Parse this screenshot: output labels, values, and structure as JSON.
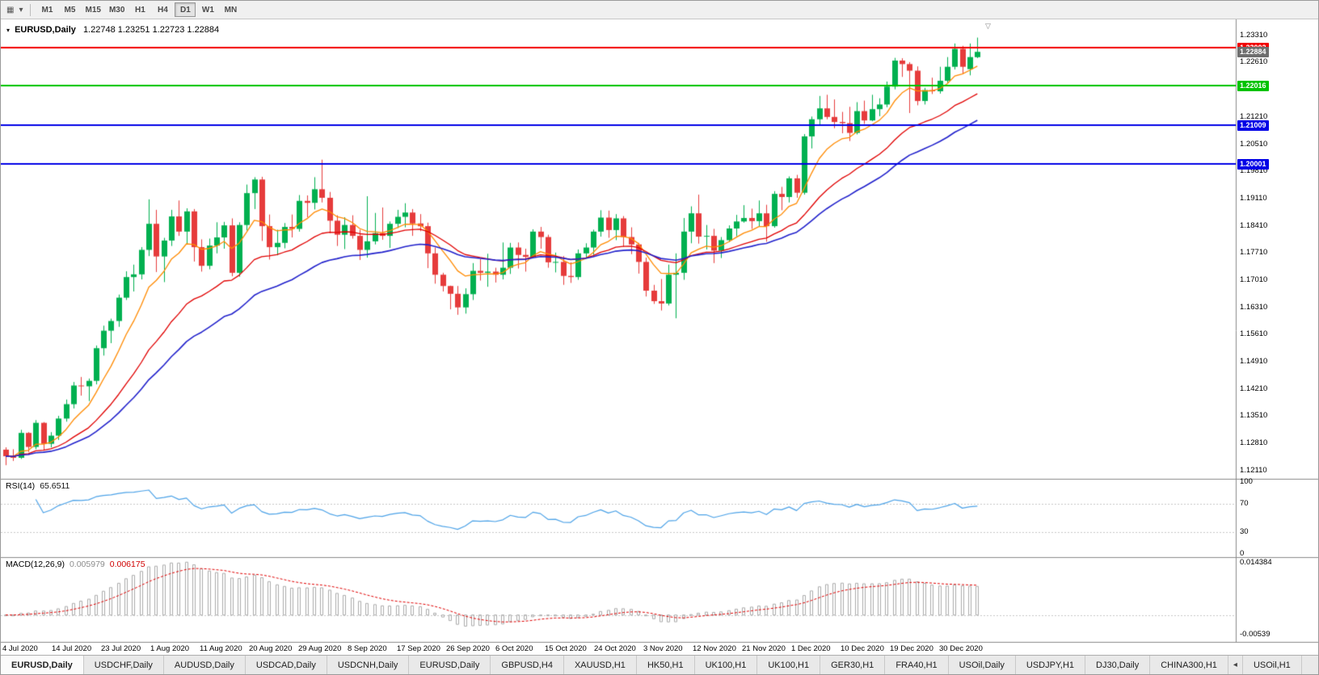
{
  "toolbar": {
    "icons": [
      {
        "name": "chart-window-icon",
        "glyph": "▦"
      },
      {
        "name": "dropdown-caret-icon",
        "glyph": "▾"
      }
    ],
    "timeframes": [
      {
        "label": "M1",
        "active": false
      },
      {
        "label": "M5",
        "active": false
      },
      {
        "label": "M15",
        "active": false
      },
      {
        "label": "M30",
        "active": false
      },
      {
        "label": "H1",
        "active": false
      },
      {
        "label": "H4",
        "active": false
      },
      {
        "label": "D1",
        "active": true
      },
      {
        "label": "W1",
        "active": false
      },
      {
        "label": "MN",
        "active": false
      }
    ]
  },
  "chart": {
    "title_symbol": "EURUSD,Daily",
    "title_ohlc": "1.22748 1.23251 1.22723 1.22884",
    "shift_marker": "▽",
    "price_axis_labels": [
      "1.23310",
      "1.22610",
      "1.21910",
      "1.21210",
      "1.20510",
      "1.19810",
      "1.19110",
      "1.18410",
      "1.17710",
      "1.17010",
      "1.16310",
      "1.15610",
      "1.14910",
      "1.14210",
      "1.13510",
      "1.12810",
      "1.12110"
    ],
    "hlines": [
      {
        "value": 1.23002,
        "label": "1.23002",
        "color": "#F20000"
      },
      {
        "value": 1.22016,
        "label": "1.22016",
        "color": "#00C300"
      },
      {
        "value": 1.21009,
        "label": "1.21009",
        "color": "#0000E6"
      },
      {
        "value": 1.20001,
        "label": "1.20001",
        "color": "#0000E6"
      }
    ],
    "current_price": {
      "value": 1.22884,
      "label": "1.22884",
      "color": "#6e6e6e"
    }
  },
  "chart_data": {
    "type": "candlestick",
    "title": "EURUSD,Daily",
    "price_range": {
      "min": 1.119,
      "max": 1.2372
    },
    "up_color": "#00B050",
    "down_color": "#E63B3B",
    "x_labels": [
      "4 Jul 2020",
      "14 Jul 2020",
      "23 Jul 2020",
      "1 Aug 2020",
      "11 Aug 2020",
      "20 Aug 2020",
      "29 Aug 2020",
      "8 Sep 2020",
      "17 Sep 2020",
      "26 Sep 2020",
      "6 Oct 2020",
      "15 Oct 2020",
      "24 Oct 2020",
      "3 Nov 2020",
      "12 Nov 2020",
      "21 Nov 2020",
      "1 Dec 2020",
      "10 Dec 2020",
      "19 Dec 2020",
      "30 Dec 2020"
    ],
    "candles": [
      [
        1.1265,
        1.1271,
        1.1225,
        1.1248
      ],
      [
        1.1248,
        1.1266,
        1.1236,
        1.1244
      ],
      [
        1.1244,
        1.1316,
        1.1241,
        1.1308
      ],
      [
        1.1308,
        1.131,
        1.1259,
        1.1272
      ],
      [
        1.1272,
        1.1341,
        1.1266,
        1.1334
      ],
      [
        1.1334,
        1.1336,
        1.1263,
        1.128
      ],
      [
        1.128,
        1.131,
        1.1271,
        1.1301
      ],
      [
        1.1301,
        1.1352,
        1.129,
        1.1345
      ],
      [
        1.1345,
        1.1394,
        1.1337,
        1.1382
      ],
      [
        1.1382,
        1.1439,
        1.1371,
        1.143
      ],
      [
        1.143,
        1.1452,
        1.1404,
        1.1428
      ],
      [
        1.1428,
        1.1448,
        1.139,
        1.1442
      ],
      [
        1.1442,
        1.1533,
        1.1433,
        1.1526
      ],
      [
        1.1526,
        1.1584,
        1.1507,
        1.1571
      ],
      [
        1.1571,
        1.1602,
        1.1539,
        1.1596
      ],
      [
        1.1596,
        1.1664,
        1.1581,
        1.1656
      ],
      [
        1.1656,
        1.1724,
        1.165,
        1.1709
      ],
      [
        1.1709,
        1.1741,
        1.1672,
        1.1716
      ],
      [
        1.1716,
        1.1786,
        1.1703,
        1.1779
      ],
      [
        1.1779,
        1.1909,
        1.1763,
        1.1846
      ],
      [
        1.1846,
        1.1882,
        1.1722,
        1.1762
      ],
      [
        1.1762,
        1.181,
        1.1696,
        1.1803
      ],
      [
        1.1803,
        1.1882,
        1.1789,
        1.1865
      ],
      [
        1.1865,
        1.1906,
        1.1815,
        1.1826
      ],
      [
        1.1826,
        1.1886,
        1.1793,
        1.1878
      ],
      [
        1.1878,
        1.1884,
        1.1749,
        1.1786
      ],
      [
        1.1786,
        1.1806,
        1.1723,
        1.1738
      ],
      [
        1.1738,
        1.1808,
        1.1729,
        1.179
      ],
      [
        1.179,
        1.185,
        1.177,
        1.1811
      ],
      [
        1.1811,
        1.1851,
        1.1782,
        1.1842
      ],
      [
        1.1842,
        1.186,
        1.1711,
        1.172
      ],
      [
        1.172,
        1.185,
        1.171,
        1.1843
      ],
      [
        1.1843,
        1.1947,
        1.1829,
        1.1925
      ],
      [
        1.1925,
        1.1966,
        1.1884,
        1.196
      ],
      [
        1.196,
        1.1967,
        1.1802,
        1.184
      ],
      [
        1.184,
        1.187,
        1.1754,
        1.1786
      ],
      [
        1.1786,
        1.1831,
        1.1765,
        1.1797
      ],
      [
        1.1797,
        1.1848,
        1.1783,
        1.1838
      ],
      [
        1.1838,
        1.187,
        1.1811,
        1.1833
      ],
      [
        1.1833,
        1.192,
        1.1826,
        1.1905
      ],
      [
        1.1905,
        1.1919,
        1.1863,
        1.19
      ],
      [
        1.19,
        1.1966,
        1.1883,
        1.1935
      ],
      [
        1.1935,
        1.2011,
        1.1901,
        1.1913
      ],
      [
        1.1913,
        1.1928,
        1.1822,
        1.1854
      ],
      [
        1.1854,
        1.1868,
        1.1789,
        1.1818
      ],
      [
        1.1818,
        1.1863,
        1.1781,
        1.1843
      ],
      [
        1.1843,
        1.1868,
        1.1808,
        1.1815
      ],
      [
        1.1815,
        1.1831,
        1.1753,
        1.1779
      ],
      [
        1.1779,
        1.1917,
        1.1759,
        1.1801
      ],
      [
        1.1801,
        1.1874,
        1.1793,
        1.1822
      ],
      [
        1.1822,
        1.1888,
        1.1805,
        1.1815
      ],
      [
        1.1815,
        1.1852,
        1.1784,
        1.1846
      ],
      [
        1.1846,
        1.1882,
        1.1835,
        1.1864
      ],
      [
        1.1864,
        1.1899,
        1.1837,
        1.1875
      ],
      [
        1.1875,
        1.1884,
        1.1815,
        1.1847
      ],
      [
        1.1847,
        1.1871,
        1.1827,
        1.184
      ],
      [
        1.184,
        1.1849,
        1.1732,
        1.177
      ],
      [
        1.177,
        1.1785,
        1.1692,
        1.1715
      ],
      [
        1.1715,
        1.172,
        1.1672,
        1.1686
      ],
      [
        1.1686,
        1.1687,
        1.1626,
        1.1666
      ],
      [
        1.1666,
        1.1686,
        1.1612,
        1.1631
      ],
      [
        1.1631,
        1.168,
        1.1615,
        1.1665
      ],
      [
        1.1665,
        1.1745,
        1.165,
        1.1725
      ],
      [
        1.1725,
        1.1755,
        1.17,
        1.172
      ],
      [
        1.172,
        1.1769,
        1.1684,
        1.1723
      ],
      [
        1.1723,
        1.1733,
        1.1695,
        1.1715
      ],
      [
        1.1715,
        1.1798,
        1.1703,
        1.1733
      ],
      [
        1.1733,
        1.1797,
        1.1717,
        1.1785
      ],
      [
        1.1785,
        1.1798,
        1.1731,
        1.1766
      ],
      [
        1.1766,
        1.1782,
        1.1723,
        1.1761
      ],
      [
        1.1761,
        1.1832,
        1.1757,
        1.1826
      ],
      [
        1.1826,
        1.1838,
        1.1782,
        1.1812
      ],
      [
        1.1812,
        1.1818,
        1.1733,
        1.1747
      ],
      [
        1.1747,
        1.1772,
        1.1721,
        1.1748
      ],
      [
        1.1748,
        1.1763,
        1.1689,
        1.1712
      ],
      [
        1.1712,
        1.1747,
        1.1694,
        1.1709
      ],
      [
        1.1709,
        1.178,
        1.1702,
        1.177
      ],
      [
        1.177,
        1.1796,
        1.1757,
        1.1785
      ],
      [
        1.1785,
        1.1831,
        1.1766,
        1.1826
      ],
      [
        1.1826,
        1.1881,
        1.1813,
        1.1862
      ],
      [
        1.1862,
        1.188,
        1.181,
        1.183
      ],
      [
        1.183,
        1.1871,
        1.1804,
        1.186
      ],
      [
        1.186,
        1.1866,
        1.1787,
        1.1812
      ],
      [
        1.1812,
        1.1837,
        1.1768,
        1.1793
      ],
      [
        1.1793,
        1.1797,
        1.1718,
        1.1748
      ],
      [
        1.1748,
        1.1759,
        1.1659,
        1.1674
      ],
      [
        1.1674,
        1.1689,
        1.164,
        1.1647
      ],
      [
        1.1647,
        1.1704,
        1.1623,
        1.1641
      ],
      [
        1.1641,
        1.1741,
        1.1636,
        1.1715
      ],
      [
        1.1715,
        1.177,
        1.1603,
        1.172
      ],
      [
        1.172,
        1.1861,
        1.1702,
        1.1826
      ],
      [
        1.1826,
        1.1891,
        1.1796,
        1.1873
      ],
      [
        1.1873,
        1.1921,
        1.1795,
        1.1813
      ],
      [
        1.1813,
        1.1843,
        1.178,
        1.1815
      ],
      [
        1.1815,
        1.1833,
        1.1745,
        1.1777
      ],
      [
        1.1777,
        1.1812,
        1.1758,
        1.1804
      ],
      [
        1.1804,
        1.1842,
        1.1799,
        1.1834
      ],
      [
        1.1834,
        1.1869,
        1.1814,
        1.1852
      ],
      [
        1.1852,
        1.1894,
        1.1849,
        1.1861
      ],
      [
        1.1861,
        1.1885,
        1.1833,
        1.1853
      ],
      [
        1.1853,
        1.1906,
        1.184,
        1.1873
      ],
      [
        1.1873,
        1.1895,
        1.18,
        1.184
      ],
      [
        1.184,
        1.193,
        1.1836,
        1.1923
      ],
      [
        1.1923,
        1.1941,
        1.1881,
        1.1915
      ],
      [
        1.1915,
        1.1968,
        1.1901,
        1.1963
      ],
      [
        1.1963,
        1.1972,
        1.1913,
        1.1926
      ],
      [
        1.1926,
        1.2077,
        1.1921,
        1.2071
      ],
      [
        1.2071,
        1.2122,
        1.204,
        1.2115
      ],
      [
        1.2115,
        1.2175,
        1.2099,
        1.2143
      ],
      [
        1.2143,
        1.2178,
        1.2115,
        1.2121
      ],
      [
        1.2121,
        1.2166,
        1.2092,
        1.2108
      ],
      [
        1.2108,
        1.2134,
        1.2079,
        1.2105
      ],
      [
        1.2105,
        1.2147,
        1.2059,
        1.208
      ],
      [
        1.208,
        1.2159,
        1.2076,
        1.2136
      ],
      [
        1.2136,
        1.2163,
        1.2103,
        1.2112
      ],
      [
        1.2112,
        1.2178,
        1.211,
        1.2141
      ],
      [
        1.2141,
        1.2169,
        1.2123,
        1.2153
      ],
      [
        1.2153,
        1.2212,
        1.2146,
        1.2199
      ],
      [
        1.2199,
        1.2273,
        1.2192,
        1.2266
      ],
      [
        1.2266,
        1.2272,
        1.2224,
        1.2257
      ],
      [
        1.2257,
        1.2262,
        1.2131,
        1.224
      ],
      [
        1.224,
        1.2251,
        1.2151,
        1.2162
      ],
      [
        1.2162,
        1.2196,
        1.2153,
        1.219
      ],
      [
        1.219,
        1.2222,
        1.218,
        1.2187
      ],
      [
        1.2187,
        1.225,
        1.2181,
        1.2214
      ],
      [
        1.2214,
        1.2275,
        1.2209,
        1.225
      ],
      [
        1.225,
        1.231,
        1.2243,
        1.2296
      ],
      [
        1.2296,
        1.2304,
        1.2232,
        1.225
      ],
      [
        1.2244,
        1.231,
        1.2228,
        1.2275
      ],
      [
        1.22748,
        1.23251,
        1.22723,
        1.22884
      ]
    ],
    "moving_averages": [
      {
        "name": "ma-fast",
        "method": "ema",
        "period": 8,
        "color": "#FF8A00"
      },
      {
        "name": "ma-medium",
        "method": "ema",
        "period": 21,
        "color": "#E10000"
      },
      {
        "name": "ma-slow",
        "method": "ema",
        "period": 34,
        "color": "#2222CC"
      }
    ],
    "indicators": [
      {
        "name": "RSI",
        "label": "RSI(14)",
        "value": "65.6511",
        "color": "#4DA3E8",
        "levels": [
          70,
          30
        ],
        "axis_labels": [
          {
            "value": 100,
            "label": "100"
          },
          {
            "value": 70,
            "label": "70"
          },
          {
            "value": 30,
            "label": "30"
          },
          {
            "value": 0,
            "label": "0"
          }
        ],
        "range": {
          "min": 0,
          "max": 100
        }
      },
      {
        "name": "MACD",
        "label": "MACD(12,26,9)",
        "values": [
          "0.005979",
          "0.006175"
        ],
        "histogram_color": "#ababab",
        "signal_color": "#E10000",
        "axis_labels": [
          {
            "value": 0.014384,
            "label": "0.014384"
          },
          {
            "value": -0.00539,
            "label": "-0.00539"
          }
        ],
        "range": {
          "min": -0.0065,
          "max": 0.015
        }
      }
    ]
  },
  "tabs": {
    "items": [
      {
        "label": "EURUSD,Daily",
        "active": true
      },
      {
        "label": "USDCHF,Daily"
      },
      {
        "label": "AUDUSD,Daily"
      },
      {
        "label": "USDCAD,Daily"
      },
      {
        "label": "USDCNH,Daily"
      },
      {
        "label": "EURUSD,Daily"
      },
      {
        "label": "GBPUSD,H4"
      },
      {
        "label": "XAUUSD,H1"
      },
      {
        "label": "HK50,H1"
      },
      {
        "label": "UK100,H1"
      },
      {
        "label": "UK100,H1"
      },
      {
        "label": "GER30,H1"
      },
      {
        "label": "FRA40,H1"
      },
      {
        "label": "USOil,Daily"
      },
      {
        "label": "USDJPY,H1"
      },
      {
        "label": "DJ30,Daily"
      },
      {
        "label": "CHINA300,H1"
      },
      {
        "type": "scroll",
        "glyph": "◂"
      },
      {
        "label": "USOil,H1"
      }
    ]
  }
}
